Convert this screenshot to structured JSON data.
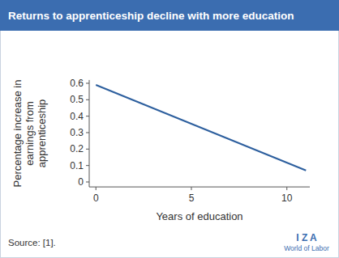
{
  "chart_data": {
    "type": "line",
    "title": "Returns to apprenticeship decline with more education",
    "x_label": "Years of education",
    "y_label": "Percentage increase in earnings from apprenticeship",
    "source": "Source: [1].",
    "branding": [
      "I Z A",
      "World of Labor"
    ],
    "x": [
      0,
      11
    ],
    "values": [
      0.59,
      0.07
    ],
    "color": "#2d5f9e",
    "xlim": [
      -0.35,
      11.2
    ],
    "xticks": [
      0,
      5,
      10
    ],
    "ylim": [
      -0.03,
      0.62
    ],
    "yticks": [
      0,
      0.1,
      0.2,
      0.3,
      0.4,
      0.5,
      0.6
    ],
    "grid": false
  }
}
